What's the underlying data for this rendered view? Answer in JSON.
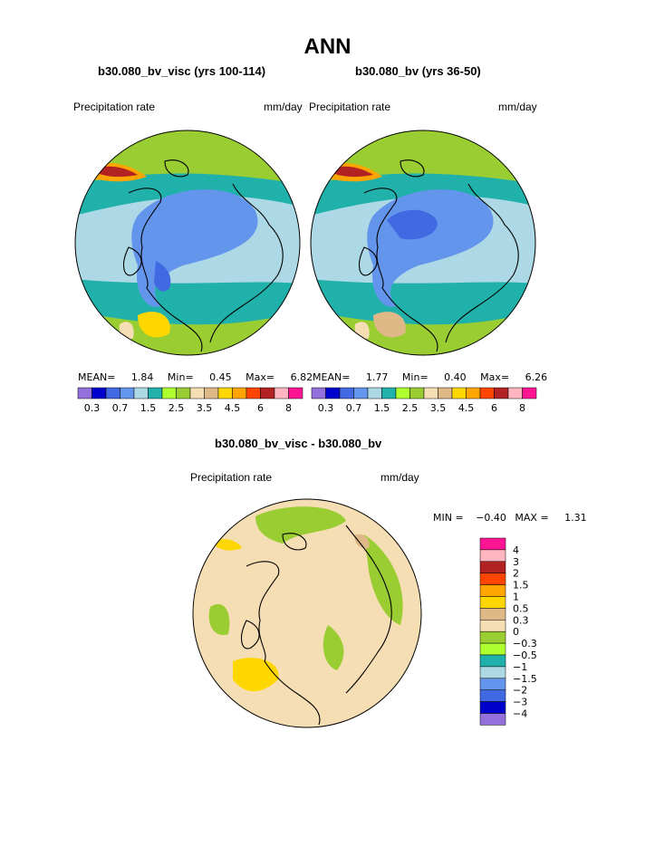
{
  "page_title": "ANN",
  "panels": [
    {
      "title": "b30.080_bv_visc (yrs 100-114)",
      "var_label": "Precipitation rate",
      "units": "mm/day",
      "stats": {
        "mean_label": "MEAN=",
        "mean": "1.84",
        "min_label": "Min=",
        "min": "0.45",
        "max_label": "Max=",
        "max": "6.82"
      }
    },
    {
      "title": "b30.080_bv (yrs 36-50)",
      "var_label": "Precipitation rate",
      "units": "mm/day",
      "stats": {
        "mean_label": "MEAN=",
        "mean": "1.77",
        "min_label": "Min=",
        "min": "0.40",
        "max_label": "Max=",
        "max": "6.26"
      }
    }
  ],
  "diff_panel": {
    "title": "b30.080_bv_visc - b30.080_bv",
    "var_label": "Precipitation rate",
    "units": "mm/day",
    "stats": {
      "min_label": "MIN =",
      "min": "−0.40",
      "max_label": "MAX =",
      "max": "1.31"
    }
  },
  "colorbar_main": {
    "colors": [
      "#9370db",
      "#0000cd",
      "#4169e1",
      "#6495ed",
      "#add8e6",
      "#20b2aa",
      "#adff2f",
      "#9acd32",
      "#f5deb3",
      "#deb887",
      "#ffd700",
      "#ffa500",
      "#ff4500",
      "#b22222",
      "#ffb6c1",
      "#ff1493"
    ],
    "labels": [
      "0.3",
      "0.7",
      "1.5",
      "2.5",
      "3.5",
      "4.5",
      "6",
      "8"
    ]
  },
  "colorbar_diff": {
    "colors": [
      "#ff1493",
      "#ffb6c1",
      "#b22222",
      "#ff4500",
      "#ffa500",
      "#ffd700",
      "#deb887",
      "#f5deb3",
      "#9acd32",
      "#adff2f",
      "#20b2aa",
      "#add8e6",
      "#6495ed",
      "#4169e1",
      "#0000cd",
      "#9370db"
    ],
    "labels": [
      "4",
      "3",
      "2",
      "1.5",
      "1",
      "0.5",
      "0.3",
      "0",
      "−0.3",
      "−0.5",
      "−1",
      "−1.5",
      "−2",
      "−3",
      "−4"
    ]
  },
  "chart_data": [
    {
      "type": "heatmap",
      "projection": "north polar stereographic",
      "title": "b30.080_bv_visc (yrs 100-114)",
      "variable": "Precipitation rate",
      "units": "mm/day",
      "mean": 1.84,
      "min": 0.45,
      "max": 6.82,
      "contour_levels": [
        0.3,
        0.5,
        0.7,
        1,
        1.5,
        2,
        2.5,
        3,
        3.5,
        4,
        4.5,
        5,
        6,
        7,
        8
      ]
    },
    {
      "type": "heatmap",
      "projection": "north polar stereographic",
      "title": "b30.080_bv (yrs 36-50)",
      "variable": "Precipitation rate",
      "units": "mm/day",
      "mean": 1.77,
      "min": 0.4,
      "max": 6.26,
      "contour_levels": [
        0.3,
        0.5,
        0.7,
        1,
        1.5,
        2,
        2.5,
        3,
        3.5,
        4,
        4.5,
        5,
        6,
        7,
        8
      ]
    },
    {
      "type": "heatmap",
      "projection": "north polar stereographic",
      "title": "b30.080_bv_visc - b30.080_bv",
      "variable": "Precipitation rate",
      "units": "mm/day",
      "min": -0.4,
      "max": 1.31,
      "contour_levels": [
        -4,
        -3,
        -2,
        -1.5,
        -1,
        -0.5,
        -0.3,
        0,
        0.3,
        0.5,
        1,
        1.5,
        2,
        3,
        4
      ]
    }
  ]
}
